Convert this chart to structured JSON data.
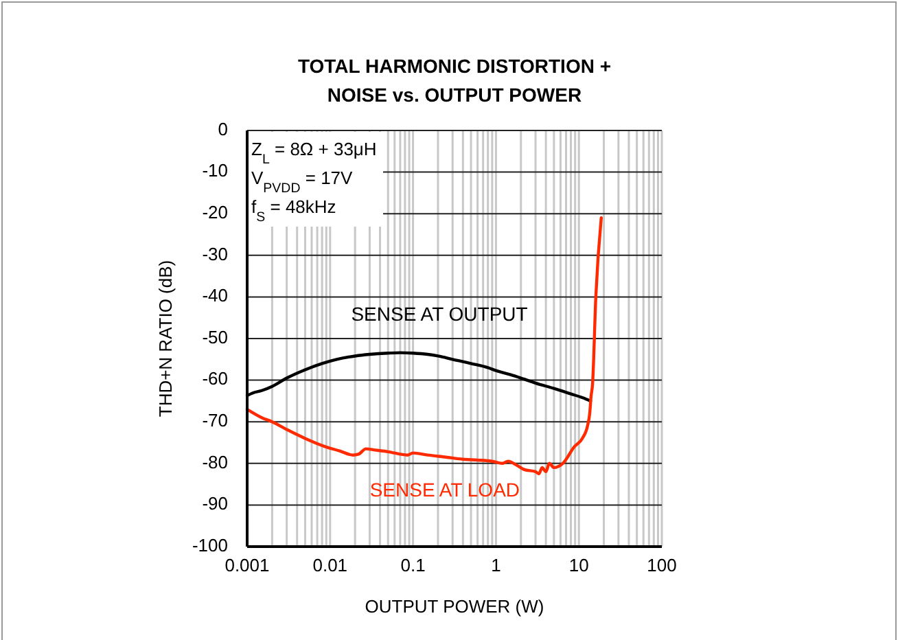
{
  "chart_data": {
    "type": "line",
    "title": "TOTAL HARMONIC DISTORTION + NOISE vs. OUTPUT POWER",
    "xlabel": "OUTPUT POWER (W)",
    "ylabel": "THD+N RATIO (dB)",
    "log": "x",
    "grid": true,
    "marker": "none",
    "line_style": "solid",
    "xlim": [
      0.001,
      100
    ],
    "xticks": [
      0.001,
      0.01,
      0.1,
      1,
      10,
      100
    ],
    "ylim": [
      -100,
      0
    ],
    "yticks": [
      0,
      -10,
      -20,
      -30,
      -40,
      -50,
      -60,
      -70,
      -80,
      -90,
      -100
    ],
    "series": [
      {
        "name": "SENSE AT OUTPUT",
        "color": "#000000",
        "x": [
          0.001,
          0.0012,
          0.0015,
          0.002,
          0.003,
          0.005,
          0.008,
          0.012,
          0.02,
          0.03,
          0.05,
          0.07,
          0.1,
          0.15,
          0.2,
          0.3,
          0.5,
          0.8,
          1,
          1.5,
          2,
          3,
          5,
          8,
          11,
          13.8
        ],
        "values": [
          -63.7,
          -63,
          -62.5,
          -61.5,
          -59.5,
          -57.5,
          -56,
          -55,
          -54.2,
          -53.8,
          -53.5,
          -53.4,
          -53.5,
          -53.8,
          -54.2,
          -55,
          -56,
          -57,
          -57.7,
          -58.7,
          -59.5,
          -60.7,
          -62,
          -63.3,
          -64.2,
          -65
        ]
      },
      {
        "name": "SENSE AT LOAD",
        "color": "#ff2a00",
        "x": [
          0.001,
          0.0015,
          0.002,
          0.0031,
          0.005,
          0.0088,
          0.013,
          0.019,
          0.022,
          0.027,
          0.035,
          0.05,
          0.086,
          0.1,
          0.15,
          0.25,
          0.4,
          0.6,
          0.9,
          1.2,
          1.4,
          1.8,
          2.2,
          3,
          3.3,
          3.6,
          4,
          4.4,
          5,
          6.4,
          8.8,
          11,
          12.7,
          13.5,
          14,
          14.6,
          16,
          18.6
        ],
        "values": [
          -67,
          -69,
          -70,
          -72,
          -74,
          -76,
          -77,
          -78,
          -77.8,
          -76.5,
          -76.8,
          -77.2,
          -78,
          -77.5,
          -78,
          -78.5,
          -79,
          -79.2,
          -79.5,
          -80,
          -79.5,
          -80.5,
          -81.5,
          -82,
          -82.5,
          -81,
          -82,
          -80,
          -81,
          -80,
          -76,
          -74,
          -71,
          -68,
          -64,
          -61,
          -40,
          -21
        ]
      }
    ],
    "annotations": [
      "Z$_{L}$ = 8Ω + 33μH",
      "V$_{PVDD}$ = 17V",
      "f$_{S}$ = 48kHz"
    ]
  }
}
